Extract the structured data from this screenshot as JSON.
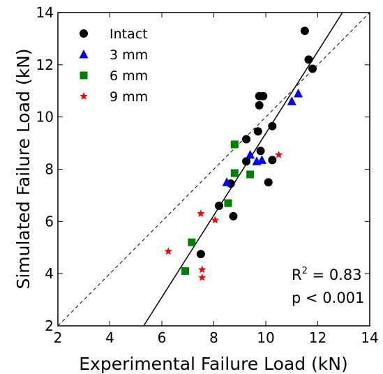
{
  "chart_data": {
    "type": "scatter",
    "xlabel": "Experimental Failure Load (kN)",
    "ylabel": "Simulated Failure Load (kN)",
    "xlim": [
      2,
      14
    ],
    "ylim": [
      2,
      14
    ],
    "xticks": [
      2,
      4,
      6,
      8,
      10,
      12,
      14
    ],
    "yticks": [
      2,
      4,
      6,
      8,
      10,
      12,
      14
    ],
    "grid": false,
    "legend_position": "top-left",
    "series": [
      {
        "name": "Intact",
        "marker": "circle",
        "color": "#000000",
        "points": [
          {
            "x": 7.5,
            "y": 4.75
          },
          {
            "x": 8.2,
            "y": 6.6
          },
          {
            "x": 8.75,
            "y": 6.2
          },
          {
            "x": 8.65,
            "y": 7.45
          },
          {
            "x": 9.25,
            "y": 8.3
          },
          {
            "x": 9.25,
            "y": 9.15
          },
          {
            "x": 9.7,
            "y": 9.45
          },
          {
            "x": 9.8,
            "y": 8.7
          },
          {
            "x": 9.75,
            "y": 10.45
          },
          {
            "x": 9.75,
            "y": 10.8
          },
          {
            "x": 9.9,
            "y": 10.8
          },
          {
            "x": 10.1,
            "y": 7.5
          },
          {
            "x": 10.25,
            "y": 8.35
          },
          {
            "x": 10.25,
            "y": 9.65
          },
          {
            "x": 11.5,
            "y": 13.3
          },
          {
            "x": 11.65,
            "y": 12.2
          },
          {
            "x": 11.8,
            "y": 11.85
          }
        ]
      },
      {
        "name": "3 mm",
        "marker": "triangle",
        "color": "#0000ff",
        "points": [
          {
            "x": 8.5,
            "y": 7.5
          },
          {
            "x": 9.4,
            "y": 8.55
          },
          {
            "x": 9.65,
            "y": 8.3
          },
          {
            "x": 9.85,
            "y": 8.35
          },
          {
            "x": 11.0,
            "y": 10.6
          },
          {
            "x": 11.25,
            "y": 10.9
          }
        ]
      },
      {
        "name": "6 mm",
        "marker": "square",
        "color": "#008000",
        "points": [
          {
            "x": 6.9,
            "y": 4.1
          },
          {
            "x": 7.15,
            "y": 5.2
          },
          {
            "x": 8.55,
            "y": 6.7
          },
          {
            "x": 8.8,
            "y": 7.85
          },
          {
            "x": 8.8,
            "y": 8.95
          },
          {
            "x": 9.4,
            "y": 7.8
          }
        ]
      },
      {
        "name": "9 mm",
        "marker": "star",
        "color": "#ff0000",
        "points": [
          {
            "x": 6.25,
            "y": 4.85
          },
          {
            "x": 7.5,
            "y": 6.3
          },
          {
            "x": 7.55,
            "y": 4.15
          },
          {
            "x": 7.55,
            "y": 3.85
          },
          {
            "x": 8.05,
            "y": 6.05
          },
          {
            "x": 10.5,
            "y": 8.55
          }
        ]
      }
    ],
    "lines": [
      {
        "name": "identity",
        "style": "dashed",
        "color": "#000000",
        "from": [
          2,
          2
        ],
        "to": [
          14,
          14
        ]
      },
      {
        "name": "regression",
        "style": "solid",
        "color": "#000000",
        "from": [
          5.3,
          2
        ],
        "to": [
          12.95,
          14
        ]
      }
    ],
    "annotations": {
      "r2_prefix": "R",
      "r2_sup": "2",
      "r2_suffix": " = 0.83",
      "p_value": "p < 0.001"
    }
  }
}
